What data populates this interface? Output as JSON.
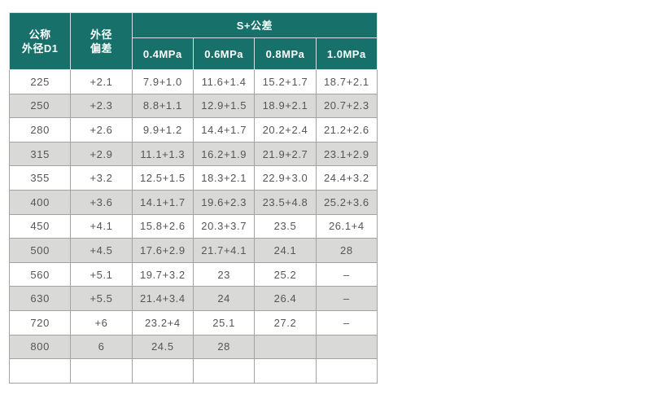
{
  "table": {
    "colors": {
      "header_bg": "#17706a",
      "header_text": "#ffffff",
      "header_border": "#cfe2e0",
      "stripe_bg": "#d9d9d7",
      "row_bg": "#ffffff",
      "body_text": "#565656",
      "body_border": "#a3a3a3"
    },
    "header": {
      "col1_line1": "公称",
      "col1_line2": "外径D1",
      "col2_line1": "外径",
      "col2_line2": "偏差",
      "span_label": "S+公差",
      "pressure_labels": [
        "0.4MPa",
        "0.6MPa",
        "0.8MPa",
        "1.0MPa"
      ]
    },
    "rows": [
      [
        "225",
        "+2.1",
        "7.9+1.0",
        "11.6+1.4",
        "15.2+1.7",
        "18.7+2.1"
      ],
      [
        "250",
        "+2.3",
        "8.8+1.1",
        "12.9+1.5",
        "18.9+2.1",
        "20.7+2.3"
      ],
      [
        "280",
        "+2.6",
        "9.9+1.2",
        "14.4+1.7",
        "20.2+2.4",
        "21.2+2.6"
      ],
      [
        "315",
        "+2.9",
        "11.1+1.3",
        "16.2+1.9",
        "21.9+2.7",
        "23.1+2.9"
      ],
      [
        "355",
        "+3.2",
        "12.5+1.5",
        "18.3+2.1",
        "22.9+3.0",
        "24.4+3.2"
      ],
      [
        "400",
        "+3.6",
        "14.1+1.7",
        "19.6+2.3",
        "23.5+4.8",
        "25.2+3.6"
      ],
      [
        "450",
        "+4.1",
        "15.8+2.6",
        "20.3+3.7",
        "23.5",
        "26.1+4"
      ],
      [
        "500",
        "+4.5",
        "17.6+2.9",
        "21.7+4.1",
        "24.1",
        "28"
      ],
      [
        "560",
        "+5.1",
        "19.7+3.2",
        "23",
        "25.2",
        "–"
      ],
      [
        "630",
        "+5.5",
        "21.4+3.4",
        "24",
        "26.4",
        "–"
      ],
      [
        "720",
        "+6",
        "23.2+4",
        "25.1",
        "27.2",
        "–"
      ],
      [
        "800",
        "6",
        "24.5",
        "28",
        "",
        ""
      ],
      [
        "",
        "",
        "",
        "",
        "",
        ""
      ]
    ]
  },
  "chart_data": {
    "type": "table",
    "title": "S+公差",
    "columns": [
      "公称外径D1",
      "外径偏差",
      "0.4MPa",
      "0.6MPa",
      "0.8MPa",
      "1.0MPa"
    ],
    "rows": [
      [
        "225",
        "+2.1",
        "7.9+1.0",
        "11.6+1.4",
        "15.2+1.7",
        "18.7+2.1"
      ],
      [
        "250",
        "+2.3",
        "8.8+1.1",
        "12.9+1.5",
        "18.9+2.1",
        "20.7+2.3"
      ],
      [
        "280",
        "+2.6",
        "9.9+1.2",
        "14.4+1.7",
        "20.2+2.4",
        "21.2+2.6"
      ],
      [
        "315",
        "+2.9",
        "11.1+1.3",
        "16.2+1.9",
        "21.9+2.7",
        "23.1+2.9"
      ],
      [
        "355",
        "+3.2",
        "12.5+1.5",
        "18.3+2.1",
        "22.9+3.0",
        "24.4+3.2"
      ],
      [
        "400",
        "+3.6",
        "14.1+1.7",
        "19.6+2.3",
        "23.5+4.8",
        "25.2+3.6"
      ],
      [
        "450",
        "+4.1",
        "15.8+2.6",
        "20.3+3.7",
        "23.5",
        "26.1+4"
      ],
      [
        "500",
        "+4.5",
        "17.6+2.9",
        "21.7+4.1",
        "24.1",
        "28"
      ],
      [
        "560",
        "+5.1",
        "19.7+3.2",
        "23",
        "25.2",
        "–"
      ],
      [
        "630",
        "+5.5",
        "21.4+3.4",
        "24",
        "26.4",
        "–"
      ],
      [
        "720",
        "+6",
        "23.2+4",
        "25.1",
        "27.2",
        "–"
      ],
      [
        "800",
        "6",
        "24.5",
        "28",
        "",
        ""
      ]
    ]
  }
}
